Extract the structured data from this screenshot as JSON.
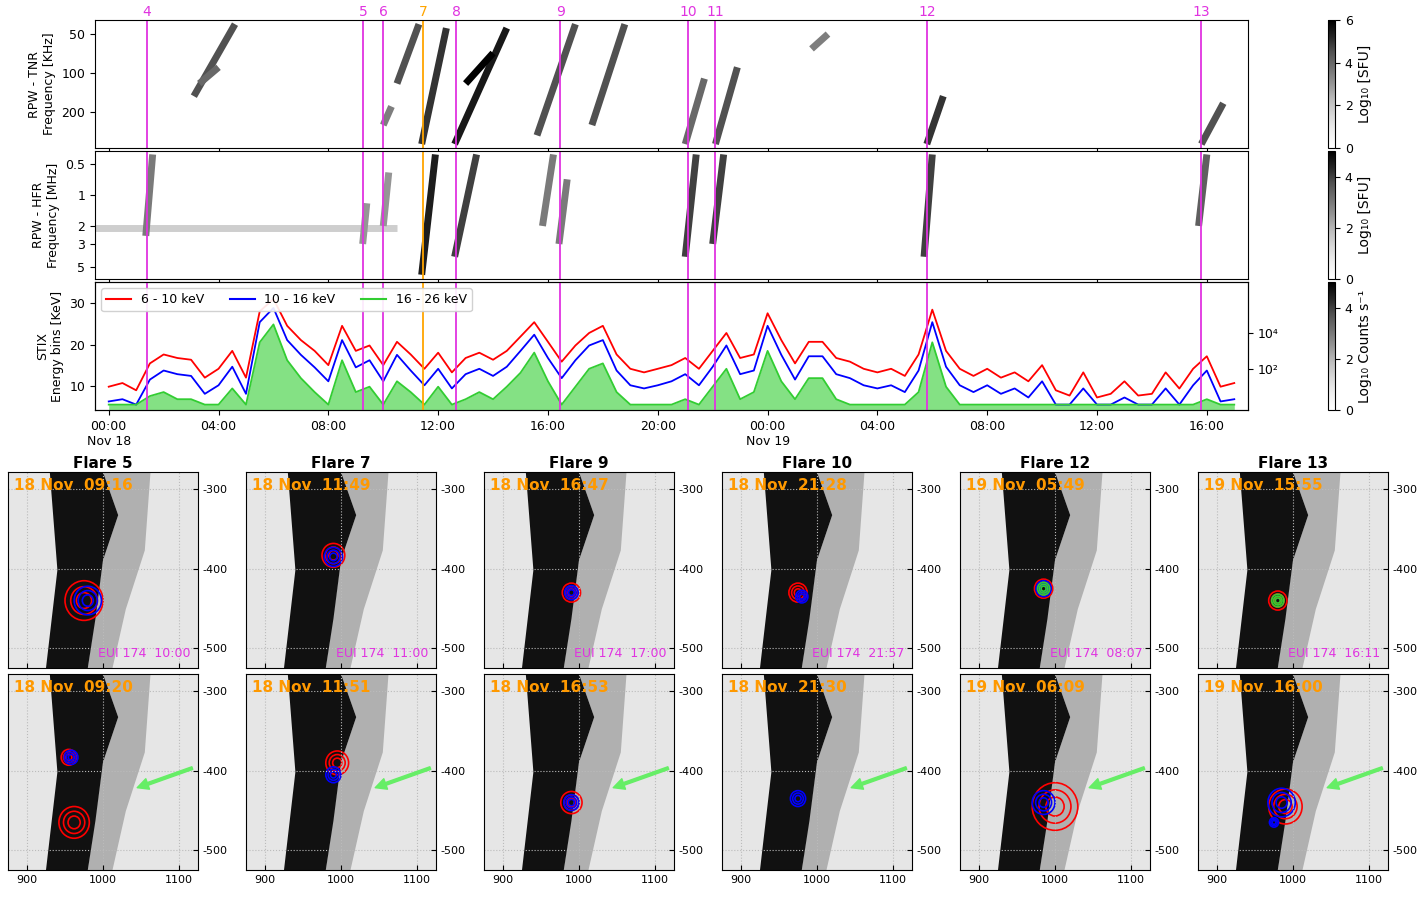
{
  "chart_data": [
    {
      "type": "spectrogram",
      "ylabel": "RPW - TNR\nFrequency [KHz]",
      "log": "y",
      "xlim": [
        -0.5,
        41.5
      ],
      "ylim": [
        375,
        39
      ],
      "yticks": [
        50,
        100,
        200
      ],
      "tick_labels": "y",
      "bursts": [
        {
          "t": [
            3.1,
            4.6
          ],
          "f": [
            150,
            42
          ],
          "level": 4.5
        },
        {
          "t": [
            3.3,
            4.0
          ],
          "f": [
            120,
            90
          ],
          "level": 4
        },
        {
          "t": [
            10.0,
            10.3
          ],
          "f": [
            250,
            180
          ],
          "level": 3.5
        },
        {
          "t": [
            10.5,
            11.3
          ],
          "f": [
            120,
            42
          ],
          "level": 4.5
        },
        {
          "t": [
            11.4,
            12.3
          ],
          "f": [
            350,
            45
          ],
          "level": 5
        },
        {
          "t": [
            12.6,
            14.5
          ],
          "f": [
            350,
            45
          ],
          "level": 5.5
        },
        {
          "t": [
            13.0,
            14.0
          ],
          "f": [
            120,
            70
          ],
          "level": 6
        },
        {
          "t": [
            15.6,
            17.0
          ],
          "f": [
            300,
            42
          ],
          "level": 4.5
        },
        {
          "t": [
            17.6,
            18.8
          ],
          "f": [
            250,
            42
          ],
          "level": 4.5
        },
        {
          "t": [
            21.0,
            21.7
          ],
          "f": [
            350,
            110
          ],
          "level": 4
        },
        {
          "t": [
            22.1,
            22.9
          ],
          "f": [
            350,
            90
          ],
          "level": 4.5
        },
        {
          "t": [
            25.6,
            26.2
          ],
          "f": [
            65,
            50
          ],
          "level": 3.5
        },
        {
          "t": [
            29.8,
            30.4
          ],
          "f": [
            350,
            150
          ],
          "level": 5
        },
        {
          "t": [
            39.8,
            40.6
          ],
          "f": [
            350,
            170
          ],
          "level": 4.5
        }
      ],
      "colorbar": {
        "label": "Log₁₀ [SFU]",
        "range": [
          0,
          6
        ],
        "ticks": [
          0,
          2,
          4,
          6
        ]
      }
    },
    {
      "type": "spectrogram",
      "ylabel": "RPW - HFR\nFrequency [MHz]",
      "log": "y",
      "xlim": [
        -0.5,
        41.5
      ],
      "ylim": [
        6.6,
        0.37
      ],
      "yticks": [
        0.5,
        1,
        2,
        3,
        5
      ],
      "tick_labels": "y",
      "bursts": [
        {
          "t": [
            -0.5,
            10.5
          ],
          "f": [
            2.1,
            2.1
          ],
          "level": 1.5
        },
        {
          "t": [
            1.35,
            1.6
          ],
          "f": [
            2.5,
            0.4
          ],
          "level": 3
        },
        {
          "t": [
            9.25,
            9.4
          ],
          "f": [
            3,
            1.2
          ],
          "level": 2.5
        },
        {
          "t": [
            10.0,
            10.2
          ],
          "f": [
            2,
            0.6
          ],
          "level": 2.5
        },
        {
          "t": [
            11.4,
            11.9
          ],
          "f": [
            6,
            0.4
          ],
          "level": 4.5
        },
        {
          "t": [
            12.6,
            13.4
          ],
          "f": [
            4,
            0.4
          ],
          "level": 4
        },
        {
          "t": [
            15.8,
            16.2
          ],
          "f": [
            2,
            0.4
          ],
          "level": 3
        },
        {
          "t": [
            16.4,
            16.7
          ],
          "f": [
            3,
            0.7
          ],
          "level": 3
        },
        {
          "t": [
            21.0,
            21.4
          ],
          "f": [
            4,
            0.4
          ],
          "level": 4
        },
        {
          "t": [
            22.0,
            22.4
          ],
          "f": [
            3,
            0.4
          ],
          "level": 4
        },
        {
          "t": [
            29.7,
            30.0
          ],
          "f": [
            4,
            0.4
          ],
          "level": 4
        },
        {
          "t": [
            39.7,
            40.0
          ],
          "f": [
            2,
            0.4
          ],
          "level": 3.5
        }
      ],
      "colorbar": {
        "label": "Log₁₀ [SFU]",
        "range": [
          0,
          5
        ],
        "ticks": [
          0,
          2,
          4
        ]
      }
    },
    {
      "type": "line",
      "log": "y",
      "legend": "upper left",
      "xlim": [
        -0.5,
        41.5
      ],
      "xticks": [
        {
          "value": 0,
          "label": "00:00\nNov 18"
        },
        {
          "value": 4,
          "label": "04:00"
        },
        {
          "value": 8,
          "label": "08:00"
        },
        {
          "value": 12,
          "label": "12:00"
        },
        {
          "value": 16,
          "label": "16:00"
        },
        {
          "value": 20,
          "label": "20:00"
        },
        {
          "value": 24,
          "label": "00:00\nNov 19"
        },
        {
          "value": 28,
          "label": "04:00"
        },
        {
          "value": 32,
          "label": "08:00"
        },
        {
          "value": 36,
          "label": "12:00"
        },
        {
          "value": 40,
          "label": "16:00"
        }
      ],
      "ylim": [
        0.5,
        7000000
      ],
      "yticks": [
        {
          "value": 100,
          "label": "10²"
        },
        {
          "value": 10000,
          "label": "10⁴"
        }
      ],
      "y2label": "STIX\nEnergy bins [KeV]",
      "y2lim": [
        4.3,
        35
      ],
      "y2ticks": [
        10,
        20,
        30
      ],
      "x": [
        0,
        0.5,
        1,
        1.5,
        2,
        2.5,
        3,
        3.5,
        4,
        4.5,
        5,
        5.5,
        6,
        6.5,
        7,
        7.5,
        8,
        8.5,
        9,
        9.5,
        10,
        10.5,
        11,
        11.5,
        12,
        12.5,
        13,
        13.5,
        14,
        14.5,
        15,
        15.5,
        16,
        16.5,
        17,
        17.5,
        18,
        18.5,
        19,
        19.5,
        20,
        20.5,
        21,
        21.5,
        22,
        22.5,
        23,
        23.5,
        24,
        24.5,
        25,
        25.5,
        26,
        26.5,
        27,
        27.5,
        28,
        28.5,
        29,
        29.5,
        30,
        30.5,
        31,
        31.5,
        32,
        32.5,
        33,
        33.5,
        34,
        34.5,
        35,
        35.5,
        36,
        36.5,
        37,
        37.5,
        38,
        38.5,
        39,
        39.5,
        40,
        40.5,
        41
      ],
      "series": [
        {
          "name": "6 - 10 keV",
          "color": "red",
          "type": "line",
          "values": [
            10,
            16,
            6.3,
            200,
            630,
            400,
            320,
            32,
            100,
            1000,
            32,
            160000,
            790000,
            25000,
            4000,
            1000,
            160,
            25000,
            1000,
            2000,
            160,
            3200,
            630,
            100,
            790,
            63,
            400,
            790,
            320,
            1000,
            6300,
            40000,
            3200,
            250,
            2000,
            10000,
            25000,
            630,
            100,
            63,
            100,
            160,
            400,
            100,
            1000,
            10000,
            400,
            630,
            126000,
            4000,
            200,
            3200,
            3200,
            400,
            250,
            100,
            63,
            100,
            40,
            630,
            200000,
            1000,
            100,
            40,
            100,
            32,
            63,
            20,
            160,
            6.3,
            3.2,
            63,
            2.5,
            4,
            20,
            3.2,
            4,
            63,
            7.9,
            100,
            500,
            10,
            16
          ]
        },
        {
          "name": "10 - 16 keV",
          "color": "blue",
          "type": "line",
          "values": [
            1.5,
            2,
            1,
            25,
            80,
            50,
            40,
            4,
            12,
            130,
            4,
            40000,
            250000,
            4000,
            600,
            120,
            20,
            4000,
            120,
            300,
            20,
            600,
            80,
            12,
            100,
            8,
            50,
            100,
            40,
            130,
            1000,
            8000,
            400,
            30,
            300,
            2000,
            4000,
            80,
            12,
            8,
            12,
            20,
            50,
            12,
            130,
            2000,
            50,
            80,
            25000,
            600,
            25,
            500,
            500,
            50,
            30,
            12,
            8,
            12,
            5,
            80,
            40000,
            130,
            12,
            5,
            12,
            4,
            8,
            2.5,
            20,
            1,
            1,
            8,
            1,
            1,
            2.5,
            1,
            1,
            8,
            1,
            12,
            80,
            1.5,
            2
          ]
        },
        {
          "name": "16 - 26 keV",
          "color": "limegreen",
          "type": "area",
          "values": [
            1,
            1,
            1,
            3,
            5,
            2,
            2,
            1,
            1,
            8,
            1,
            3000,
            30000,
            300,
            30,
            5,
            1,
            300,
            5,
            10,
            1,
            20,
            5,
            1,
            10,
            1,
            2,
            5,
            2,
            10,
            60,
            800,
            20,
            1,
            10,
            100,
            200,
            5,
            1,
            1,
            1,
            1,
            2,
            1,
            10,
            100,
            2,
            5,
            1000,
            20,
            2,
            30,
            30,
            2,
            1,
            1,
            1,
            1,
            1,
            5,
            3000,
            10,
            1,
            1,
            1,
            1,
            1,
            1,
            1,
            1,
            1,
            1,
            1,
            1,
            1,
            1,
            1,
            1,
            1,
            1,
            2,
            1,
            1
          ]
        }
      ],
      "colorbar": {
        "label": "Log₁₀ Counts s⁻¹",
        "range": [
          0,
          5
        ],
        "ticks": [
          0,
          2,
          4
        ]
      }
    }
  ],
  "flare_markers": [
    {
      "label": "4",
      "time": 1.4,
      "color": "#e033e0"
    },
    {
      "label": "5",
      "time": 9.27,
      "color": "#e033e0"
    },
    {
      "label": "6",
      "time": 10.0,
      "color": "#e033e0"
    },
    {
      "label": "7",
      "time": 11.45,
      "color": "#ffa500"
    },
    {
      "label": "8",
      "time": 12.65,
      "color": "#e033e0"
    },
    {
      "label": "9",
      "time": 16.45,
      "color": "#e033e0"
    },
    {
      "label": "10",
      "time": 21.1,
      "color": "#e033e0"
    },
    {
      "label": "11",
      "time": 22.1,
      "color": "#e033e0"
    },
    {
      "label": "12",
      "time": 29.8,
      "color": "#e033e0"
    },
    {
      "label": "13",
      "time": 39.8,
      "color": "#e033e0"
    }
  ],
  "image_axes": {
    "xlim": [
      875,
      1125
    ],
    "ylim": [
      -525,
      -278
    ],
    "xticks": [
      900,
      1000,
      1100
    ],
    "yticks": [
      -300,
      -400,
      -500
    ],
    "grid": true
  },
  "image_panels": [
    {
      "title": "Flare 5",
      "top": {
        "time": "18 Nov  09:16",
        "eui": "EUI 174  10:00",
        "sources": [
          {
            "color": "red",
            "x": 975,
            "y": -440,
            "r": 25
          },
          {
            "color": "blue",
            "x": 980,
            "y": -440,
            "r": 18
          }
        ]
      },
      "bottom": {
        "time": "18 Nov  09:20",
        "sources": [
          {
            "color": "red",
            "x": 955,
            "y": -383,
            "r": 10
          },
          {
            "color": "blue",
            "x": 958,
            "y": -383,
            "r": 9
          },
          {
            "color": "red",
            "x": 962,
            "y": -465,
            "r": 20
          }
        ]
      }
    },
    {
      "title": "Flare 7",
      "top": {
        "time": "18 Nov  11:49",
        "eui": "EUI 174  11:00",
        "sources": [
          {
            "color": "red",
            "x": 990,
            "y": -383,
            "r": 15
          },
          {
            "color": "blue",
            "x": 990,
            "y": -385,
            "r": 12
          }
        ]
      },
      "bottom": {
        "time": "18 Nov  11:51",
        "sources": [
          {
            "color": "red",
            "x": 995,
            "y": -390,
            "r": 15
          },
          {
            "color": "blue",
            "x": 990,
            "y": -405,
            "r": 10
          }
        ]
      }
    },
    {
      "title": "Flare 9",
      "top": {
        "time": "18 Nov  16:47",
        "eui": "EUI 174  17:00",
        "sources": [
          {
            "color": "red",
            "x": 990,
            "y": -430,
            "r": 12
          },
          {
            "color": "blue",
            "x": 990,
            "y": -430,
            "r": 9
          }
        ]
      },
      "bottom": {
        "time": "18 Nov  16:53",
        "sources": [
          {
            "color": "red",
            "x": 990,
            "y": -440,
            "r": 14
          },
          {
            "color": "blue",
            "x": 990,
            "y": -440,
            "r": 10
          }
        ]
      }
    },
    {
      "title": "Flare 10",
      "top": {
        "time": "18 Nov  21:28",
        "eui": "EUI 174  21:57",
        "sources": [
          {
            "color": "red",
            "x": 975,
            "y": -430,
            "r": 12
          },
          {
            "color": "blue",
            "x": 980,
            "y": -435,
            "r": 8
          }
        ]
      },
      "bottom": {
        "time": "18 Nov  21:30",
        "sources": [
          {
            "color": "blue",
            "x": 975,
            "y": -435,
            "r": 10
          }
        ]
      }
    },
    {
      "title": "Flare 12",
      "top": {
        "time": "19 Nov  05:49",
        "eui": "EUI 174  08:07",
        "sources": [
          {
            "color": "red",
            "x": 985,
            "y": -425,
            "r": 12
          },
          {
            "color": "blue",
            "x": 985,
            "y": -425,
            "r": 10
          },
          {
            "color": "limegreen",
            "x": 985,
            "y": -425,
            "r": 8
          }
        ]
      },
      "bottom": {
        "time": "19 Nov  06:09",
        "sources": [
          {
            "color": "red",
            "x": 1000,
            "y": -445,
            "r": 30
          },
          {
            "color": "blue",
            "x": 985,
            "y": -440,
            "r": 15
          }
        ]
      }
    },
    {
      "title": "Flare 13",
      "top": {
        "time": "19 Nov  15:55",
        "eui": "EUI 174  16:11",
        "sources": [
          {
            "color": "red",
            "x": 980,
            "y": -440,
            "r": 12
          },
          {
            "color": "limegreen",
            "x": 980,
            "y": -440,
            "r": 8
          }
        ]
      },
      "bottom": {
        "time": "19 Nov  16:00",
        "sources": [
          {
            "color": "red",
            "x": 990,
            "y": -445,
            "r": 22
          },
          {
            "color": "blue",
            "x": 985,
            "y": -440,
            "r": 18
          },
          {
            "color": "blue",
            "x": 975,
            "y": -465,
            "r": 6
          }
        ]
      }
    }
  ]
}
